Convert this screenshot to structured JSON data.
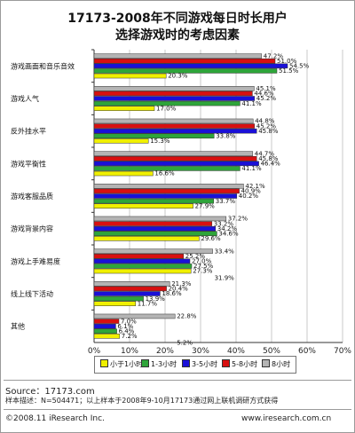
{
  "title_line1": "17173-2008年不同游戏每日时长用户",
  "title_line2": "选择游戏时的考虑因素",
  "source": "Source：17173.com",
  "sample_note": "样本描述：N=504471；以上样本于2008年9-10月17173通过网上联机调研方式获得",
  "copyright": "©2008.11 iResearch Inc.",
  "website": "www.iresearch.com.cn",
  "colors": {
    "series": [
      "#f0f000",
      "#2ea53a",
      "#1a10d8",
      "#d81010",
      "#b4b4b4"
    ]
  },
  "chart_data": {
    "type": "bar",
    "orientation": "horizontal",
    "categories": [
      "游戏画面和音乐音效",
      "游戏人气",
      "反外挂水平",
      "游戏平衡性",
      "游戏客服品质",
      "游戏背景内容",
      "游戏上手难易度",
      "线上线下活动",
      "其他"
    ],
    "x_ticks": [
      "0%",
      "10%",
      "20%",
      "30%",
      "40%",
      "50%",
      "60%",
      "70%"
    ],
    "xlim": [
      0,
      70
    ],
    "grid": true,
    "legend_position": "bottom",
    "series": [
      {
        "name": "小于1小时",
        "values": [
          20.3,
          17.0,
          15.3,
          16.6,
          27.9,
          29.6,
          27.3,
          11.7,
          7.2
        ]
      },
      {
        "name": "1-3小时",
        "values": [
          51.5,
          41.1,
          33.8,
          41.1,
          33.7,
          34.6,
          27.5,
          13.9,
          6.4
        ]
      },
      {
        "name": "3-5小时",
        "values": [
          54.5,
          45.2,
          45.8,
          46.4,
          40.2,
          34.2,
          27.0,
          18.6,
          6.1
        ]
      },
      {
        "name": "5-8小时",
        "values": [
          51.0,
          44.6,
          45.2,
          45.8,
          40.9,
          33.2,
          25.2,
          20.4,
          7.0
        ]
      },
      {
        "name": "8小时",
        "values": [
          47.2,
          45.1,
          44.8,
          44.7,
          42.1,
          37.2,
          33.4,
          21.3,
          22.8
        ]
      }
    ],
    "extra_labels": [
      {
        "category": 6,
        "text": "31.9%"
      },
      {
        "category": 8,
        "text": "5.2%"
      }
    ]
  }
}
